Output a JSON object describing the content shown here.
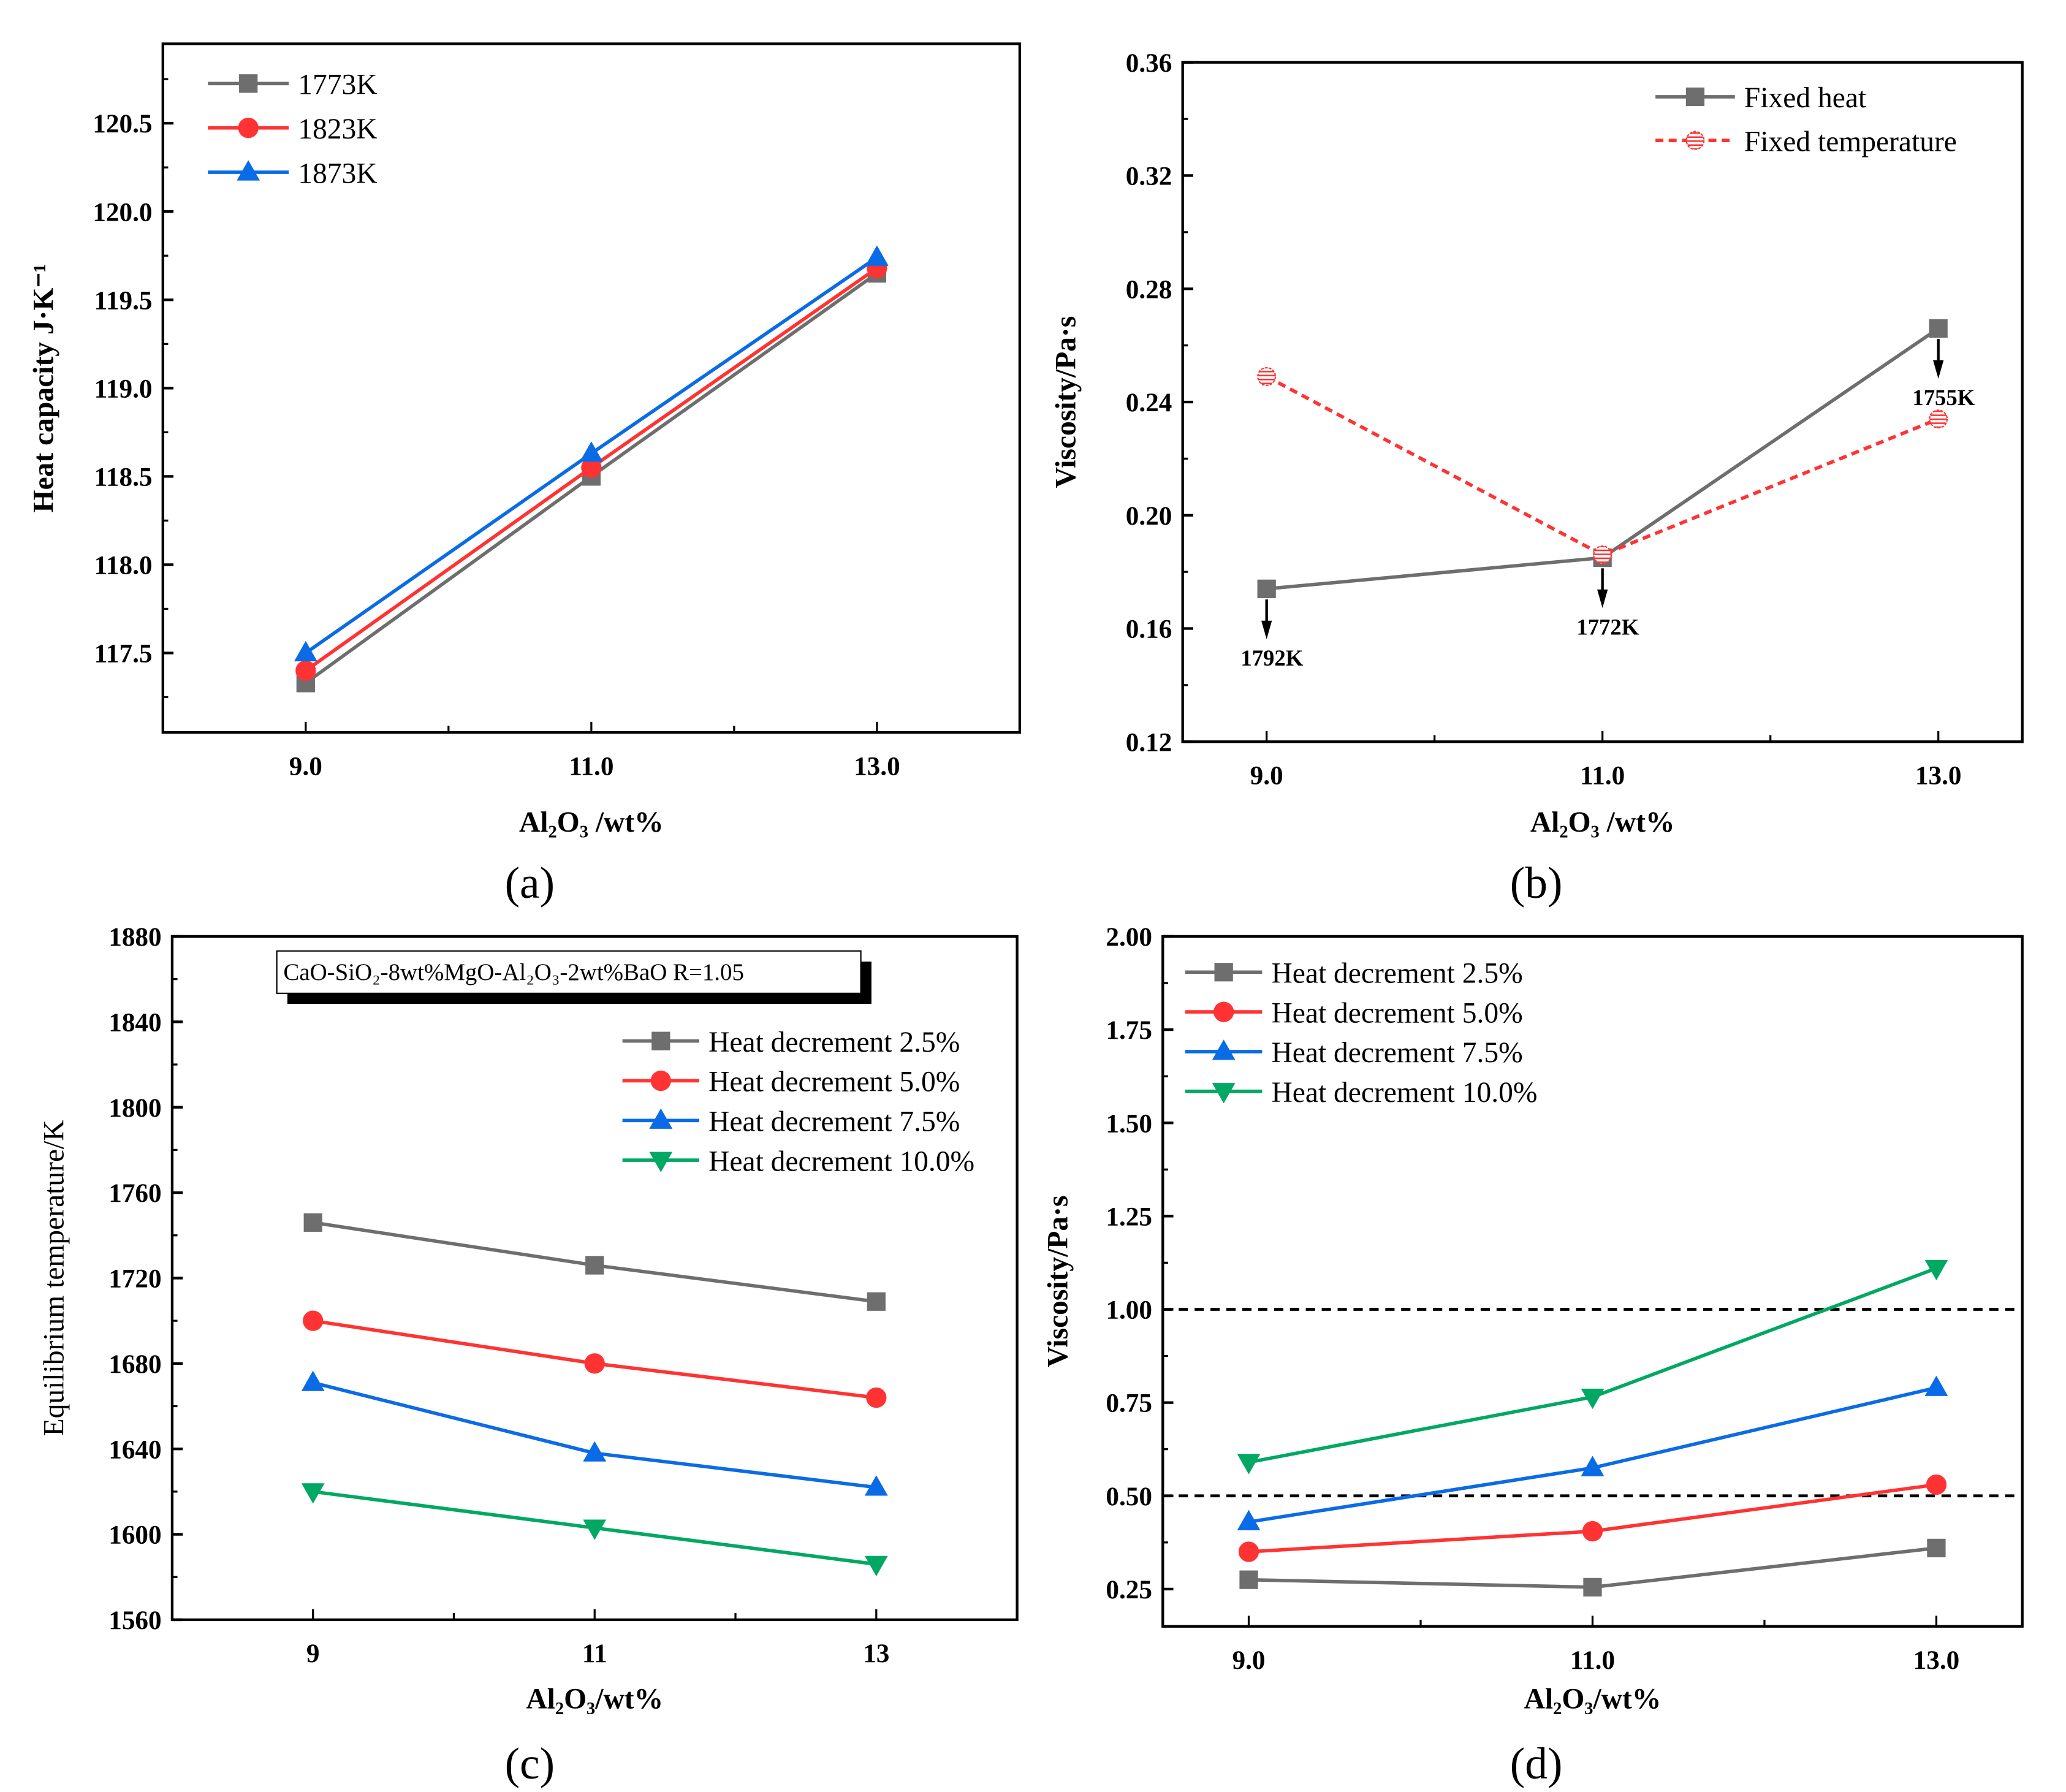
{
  "chart_data": [
    {
      "panel_label": "(a)",
      "type": "line",
      "xlabel": "Al₂O₃ /wt%",
      "ylabel": "Heat capacity J·K⁻¹",
      "xlim": [
        8,
        14
      ],
      "ylim": [
        117.05,
        120.95
      ],
      "x": [
        9,
        11,
        13
      ],
      "xticks": [
        "9.0",
        "11.0",
        "13.0"
      ],
      "yticks": [
        "117.5",
        "118.0",
        "118.5",
        "119.0",
        "119.5",
        "120.0",
        "120.5"
      ],
      "legend": "top-left",
      "series": [
        {
          "name": "1773K",
          "values": [
            117.33,
            118.5,
            119.65
          ],
          "color": "#6e6e6e",
          "marker": "square"
        },
        {
          "name": "1823K",
          "values": [
            117.4,
            118.55,
            119.68
          ],
          "color": "#ff3333",
          "marker": "circle"
        },
        {
          "name": "1873K",
          "values": [
            117.5,
            118.63,
            119.74
          ],
          "color": "#0a6be6",
          "marker": "triangle-up"
        }
      ]
    },
    {
      "panel_label": "(b)",
      "type": "line",
      "xlabel": "Al₂O₃ /wt%",
      "ylabel": "Viscosity/Pa·s",
      "xlim": [
        8.5,
        13.5
      ],
      "ylim": [
        0.12,
        0.36
      ],
      "x": [
        9,
        11,
        13
      ],
      "xticks": [
        "9.0",
        "11.0",
        "13.0"
      ],
      "yticks": [
        "0.12",
        "0.16",
        "0.20",
        "0.24",
        "0.28",
        "0.32",
        "0.36"
      ],
      "legend": "top-right",
      "series": [
        {
          "name": "Fixed heat",
          "values": [
            0.174,
            0.185,
            0.266
          ],
          "color": "#6e6e6e",
          "marker": "square"
        },
        {
          "name": "Fixed temperature",
          "values": [
            0.249,
            0.186,
            0.234
          ],
          "color": "#ff3333",
          "marker": "hatched-circle",
          "dashed": true
        }
      ],
      "annotations": [
        {
          "x": 9,
          "text": "1792K"
        },
        {
          "x": 11,
          "text": "1772K"
        },
        {
          "x": 13,
          "text": "1755K"
        }
      ]
    },
    {
      "panel_label": "(c)",
      "type": "line",
      "xlabel": "Al₂O₃/wt%",
      "ylabel": "Equilibrium temperature/K",
      "xlim": [
        8,
        14
      ],
      "ylim": [
        1560,
        1880
      ],
      "x": [
        9,
        11,
        13
      ],
      "xticks": [
        "9",
        "11",
        "13"
      ],
      "yticks": [
        "1560",
        "1600",
        "1640",
        "1680",
        "1720",
        "1760",
        "1800",
        "1840",
        "1880"
      ],
      "legend": "top-right",
      "note": "CaO-SiO₂-8wt%MgO-Al₂O₃-2wt%BaO   R=1.05",
      "series": [
        {
          "name": "Heat decrement 2.5%",
          "values": [
            1746,
            1726,
            1709
          ],
          "color": "#6e6e6e",
          "marker": "square"
        },
        {
          "name": "Heat decrement 5.0%",
          "values": [
            1700,
            1680,
            1664
          ],
          "color": "#ff3333",
          "marker": "circle"
        },
        {
          "name": "Heat decrement 7.5%",
          "values": [
            1671,
            1638,
            1622
          ],
          "color": "#0a6be6",
          "marker": "triangle-up"
        },
        {
          "name": "Heat decrement 10.0%",
          "values": [
            1620,
            1603,
            1586
          ],
          "color": "#00a864",
          "marker": "triangle-down"
        }
      ]
    },
    {
      "panel_label": "(d)",
      "type": "line",
      "xlabel": "Al₂O₃/wt%",
      "ylabel": "Viscosity/Pa·s",
      "xlim": [
        8.5,
        13.5
      ],
      "ylim": [
        0.15,
        2.0
      ],
      "x": [
        9,
        11,
        13
      ],
      "xticks": [
        "9.0",
        "11.0",
        "13.0"
      ],
      "yticks": [
        "0.25",
        "0.50",
        "0.75",
        "1.00",
        "1.25",
        "1.50",
        "1.75",
        "2.00"
      ],
      "legend": "top-left",
      "reference_lines": [
        1.0,
        0.5
      ],
      "series": [
        {
          "name": "Heat decrement 2.5%",
          "values": [
            0.275,
            0.255,
            0.36
          ],
          "color": "#6e6e6e",
          "marker": "square"
        },
        {
          "name": "Heat decrement 5.0%",
          "values": [
            0.35,
            0.405,
            0.53
          ],
          "color": "#ff3333",
          "marker": "circle"
        },
        {
          "name": "Heat decrement 7.5%",
          "values": [
            0.43,
            0.575,
            0.79
          ],
          "color": "#0a6be6",
          "marker": "triangle-up"
        },
        {
          "name": "Heat decrement 10.0%",
          "values": [
            0.59,
            0.765,
            1.11
          ],
          "color": "#00a864",
          "marker": "triangle-down"
        }
      ]
    }
  ]
}
